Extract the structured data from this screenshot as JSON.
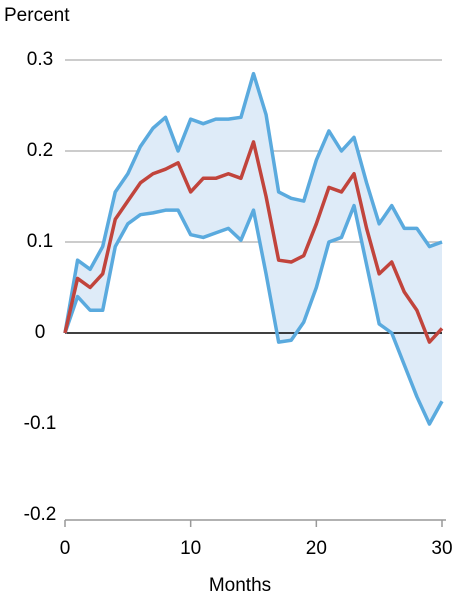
{
  "chart_data": {
    "type": "band-line",
    "y_label": "Percent",
    "x_label": "Months",
    "x": [
      0,
      1,
      2,
      3,
      4,
      5,
      6,
      7,
      8,
      9,
      10,
      11,
      12,
      13,
      14,
      15,
      16,
      17,
      18,
      19,
      20,
      21,
      22,
      23,
      24,
      25,
      26,
      27,
      28,
      29,
      30
    ],
    "band_color": "#deebf8",
    "series": [
      {
        "color": "#5aaade",
        "values": [
          0.0,
          0.08,
          0.07,
          0.095,
          0.155,
          0.175,
          0.205,
          0.225,
          0.237,
          0.2,
          0.235,
          0.23,
          0.235,
          0.235,
          0.237,
          0.285,
          0.24,
          0.155,
          0.148,
          0.145,
          0.19,
          0.222,
          0.2,
          0.215,
          0.165,
          0.12,
          0.14,
          0.115,
          0.115,
          0.095,
          0.1
        ]
      },
      {
        "color": "#c1443c",
        "values": [
          0.0,
          0.06,
          0.05,
          0.065,
          0.125,
          0.145,
          0.165,
          0.175,
          0.18,
          0.187,
          0.155,
          0.17,
          0.17,
          0.175,
          0.17,
          0.21,
          0.15,
          0.08,
          0.078,
          0.085,
          0.12,
          0.16,
          0.155,
          0.175,
          0.115,
          0.065,
          0.078,
          0.045,
          0.025,
          -0.01,
          0.005
        ]
      },
      {
        "color": "#5aaade",
        "values": [
          0.0,
          0.04,
          0.025,
          0.025,
          0.095,
          0.12,
          0.13,
          0.132,
          0.135,
          0.135,
          0.108,
          0.105,
          0.11,
          0.115,
          0.102,
          0.135,
          0.065,
          -0.01,
          -0.008,
          0.012,
          0.05,
          0.1,
          0.105,
          0.14,
          0.075,
          0.01,
          0.0,
          -0.035,
          -0.07,
          -0.1,
          -0.075
        ]
      }
    ],
    "xlim": [
      0,
      30
    ],
    "xticks": [
      0,
      10,
      20,
      30
    ],
    "ylim": [
      -0.2,
      0.3
    ],
    "yticks": [
      0.3,
      0.2,
      0.1,
      0,
      -0.1,
      -0.2
    ],
    "grid": true
  }
}
